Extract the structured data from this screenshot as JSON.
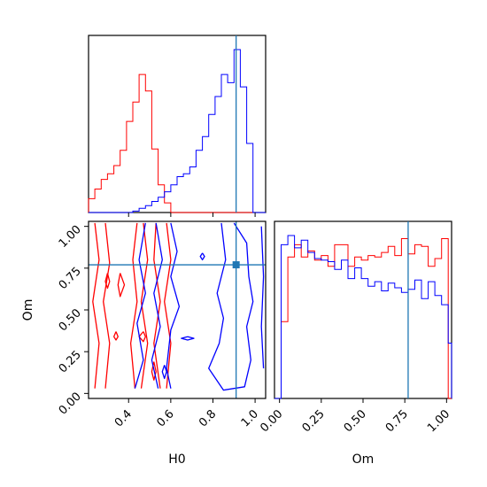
{
  "chart_data": {
    "type": "corner",
    "parameters": [
      "H0",
      "Om"
    ],
    "truth": {
      "H0": 0.91,
      "Om": 0.77
    },
    "truth_color": "#1f77b4",
    "colors": {
      "red": "#ff0000",
      "blue": "#0000ff"
    },
    "axes": {
      "H0": {
        "label": "H0",
        "lim": [
          0.21,
          1.05
        ],
        "ticks": [
          0.4,
          0.6,
          0.8,
          1.0
        ],
        "tick_labels": [
          "0.4",
          "0.6",
          "0.8",
          "1.0"
        ]
      },
      "Om": {
        "label": "Om",
        "lim": [
          -0.03,
          1.03
        ],
        "ticks": [
          0.0,
          0.25,
          0.5,
          0.75,
          1.0
        ],
        "tick_labels": [
          "0.00",
          "0.25",
          "0.50",
          "0.75",
          "1.00"
        ]
      }
    },
    "hist_H0": {
      "bin_edges": [
        0.21,
        0.24,
        0.27,
        0.3,
        0.33,
        0.36,
        0.39,
        0.42,
        0.45,
        0.48,
        0.51,
        0.54,
        0.57,
        0.6,
        0.63,
        0.66,
        0.69,
        0.72,
        0.75,
        0.78,
        0.81,
        0.84,
        0.87,
        0.9,
        0.93,
        0.96,
        0.99,
        1.02,
        1.05
      ],
      "series": [
        {
          "color": "red",
          "values": [
            10,
            17,
            24,
            28,
            34,
            45,
            66,
            80,
            100,
            88,
            46,
            20,
            7,
            0,
            0,
            0,
            0,
            0,
            0,
            0,
            0,
            0,
            0,
            0,
            0,
            0,
            0,
            0
          ]
        },
        {
          "color": "blue",
          "values": [
            0,
            0,
            0,
            0,
            0,
            0,
            0,
            1,
            3,
            5,
            8,
            11,
            15,
            20,
            26,
            28,
            33,
            45,
            55,
            71,
            84,
            100,
            94,
            118,
            91,
            50,
            0,
            0
          ]
        }
      ]
    },
    "hist_Om": {
      "bin_edges": [
        -0.03,
        0.01,
        0.05,
        0.09,
        0.13,
        0.17,
        0.21,
        0.25,
        0.29,
        0.33,
        0.37,
        0.41,
        0.45,
        0.49,
        0.53,
        0.57,
        0.61,
        0.65,
        0.69,
        0.73,
        0.77,
        0.81,
        0.85,
        0.89,
        0.93,
        0.97,
        1.01,
        1.03
      ],
      "series": [
        {
          "color": "red",
          "values": [
            0,
            50,
            92,
            100,
            92,
            96,
            90,
            93,
            86,
            100,
            100,
            86,
            92,
            90,
            93,
            92,
            95,
            99,
            93,
            104,
            94,
            100,
            99,
            86,
            91,
            104,
            0
          ]
        },
        {
          "color": "blue",
          "values": [
            0,
            100,
            106,
            98,
            103,
            95,
            91,
            90,
            89,
            84,
            90,
            78,
            85,
            78,
            73,
            76,
            70,
            75,
            72,
            69,
            71,
            77,
            65,
            76,
            67,
            61,
            36
          ]
        }
      ]
    },
    "contours": [
      {
        "color": "red",
        "points": [
          [
            0.24,
            1.02
          ],
          [
            0.26,
            0.8
          ],
          [
            0.23,
            0.55
          ],
          [
            0.26,
            0.3
          ],
          [
            0.24,
            0.03
          ]
        ]
      },
      {
        "color": "red",
        "points": [
          [
            0.29,
            1.02
          ],
          [
            0.31,
            0.78
          ],
          [
            0.28,
            0.55
          ],
          [
            0.31,
            0.3
          ],
          [
            0.29,
            0.03
          ]
        ]
      },
      {
        "color": "red",
        "points": [
          [
            0.44,
            1.02
          ],
          [
            0.42,
            0.8
          ],
          [
            0.44,
            0.55
          ],
          [
            0.41,
            0.3
          ],
          [
            0.43,
            0.03
          ]
        ]
      },
      {
        "color": "red",
        "points": [
          [
            0.47,
            1.02
          ],
          [
            0.49,
            0.8
          ],
          [
            0.46,
            0.55
          ],
          [
            0.49,
            0.3
          ],
          [
            0.46,
            0.03
          ]
        ]
      },
      {
        "color": "red",
        "points": [
          [
            0.53,
            1.02
          ],
          [
            0.52,
            0.8
          ],
          [
            0.55,
            0.55
          ],
          [
            0.52,
            0.3
          ],
          [
            0.55,
            0.03
          ]
        ]
      },
      {
        "color": "red",
        "points": [
          [
            0.58,
            1.02
          ],
          [
            0.6,
            0.8
          ],
          [
            0.57,
            0.55
          ],
          [
            0.6,
            0.3
          ],
          [
            0.58,
            0.03
          ]
        ]
      },
      {
        "color": "red",
        "points": [
          [
            0.36,
            0.72
          ],
          [
            0.38,
            0.65
          ],
          [
            0.36,
            0.58
          ],
          [
            0.35,
            0.65
          ],
          [
            0.36,
            0.72
          ]
        ]
      },
      {
        "color": "red",
        "points": [
          [
            0.47,
            0.37
          ],
          [
            0.45,
            0.34
          ],
          [
            0.47,
            0.31
          ],
          [
            0.48,
            0.34
          ],
          [
            0.47,
            0.37
          ]
        ]
      },
      {
        "color": "red",
        "points": [
          [
            0.3,
            0.72
          ],
          [
            0.31,
            0.67
          ],
          [
            0.3,
            0.63
          ],
          [
            0.29,
            0.67
          ],
          [
            0.3,
            0.72
          ]
        ]
      },
      {
        "color": "red",
        "points": [
          [
            0.34,
            0.37
          ],
          [
            0.35,
            0.34
          ],
          [
            0.34,
            0.32
          ],
          [
            0.33,
            0.34
          ],
          [
            0.34,
            0.37
          ]
        ]
      },
      {
        "color": "red",
        "points": [
          [
            0.52,
            0.19
          ],
          [
            0.53,
            0.13
          ],
          [
            0.52,
            0.08
          ],
          [
            0.51,
            0.13
          ],
          [
            0.52,
            0.19
          ]
        ]
      },
      {
        "color": "blue",
        "points": [
          [
            0.48,
            1.02
          ],
          [
            0.45,
            0.8
          ],
          [
            0.48,
            0.6
          ],
          [
            0.44,
            0.42
          ],
          [
            0.47,
            0.2
          ],
          [
            0.43,
            0.03
          ]
        ]
      },
      {
        "color": "blue",
        "points": [
          [
            0.53,
            1.02
          ],
          [
            0.56,
            0.8
          ],
          [
            0.52,
            0.6
          ],
          [
            0.55,
            0.4
          ],
          [
            0.51,
            0.2
          ],
          [
            0.54,
            0.03
          ]
        ]
      },
      {
        "color": "blue",
        "points": [
          [
            0.6,
            1.02
          ],
          [
            0.63,
            0.85
          ],
          [
            0.6,
            0.7
          ],
          [
            0.64,
            0.52
          ],
          [
            0.6,
            0.38
          ],
          [
            0.58,
            0.15
          ],
          [
            0.6,
            0.03
          ]
        ]
      },
      {
        "color": "blue",
        "points": [
          [
            0.9,
            1.02
          ],
          [
            0.96,
            0.9
          ],
          [
            0.97,
            0.7
          ],
          [
            0.99,
            0.55
          ],
          [
            0.96,
            0.4
          ],
          [
            0.98,
            0.2
          ],
          [
            0.95,
            0.04
          ],
          [
            0.85,
            0.02
          ],
          [
            0.78,
            0.15
          ],
          [
            0.83,
            0.3
          ],
          [
            0.85,
            0.45
          ],
          [
            0.82,
            0.6
          ],
          [
            0.86,
            0.8
          ],
          [
            0.84,
            1.02
          ]
        ]
      },
      {
        "color": "blue",
        "points": [
          [
            1.03,
            1.0
          ],
          [
            1.04,
            0.7
          ],
          [
            1.03,
            0.4
          ],
          [
            1.04,
            0.15
          ]
        ]
      },
      {
        "color": "blue",
        "points": [
          [
            0.68,
            0.34
          ],
          [
            0.71,
            0.33
          ],
          [
            0.68,
            0.32
          ],
          [
            0.65,
            0.33
          ],
          [
            0.68,
            0.34
          ]
        ]
      },
      {
        "color": "blue",
        "points": [
          [
            0.57,
            0.17
          ],
          [
            0.58,
            0.13
          ],
          [
            0.57,
            0.09
          ],
          [
            0.56,
            0.13
          ],
          [
            0.57,
            0.17
          ]
        ]
      },
      {
        "color": "blue",
        "points": [
          [
            0.75,
            0.84
          ],
          [
            0.76,
            0.82
          ],
          [
            0.75,
            0.8
          ],
          [
            0.74,
            0.82
          ],
          [
            0.75,
            0.84
          ]
        ]
      }
    ]
  }
}
